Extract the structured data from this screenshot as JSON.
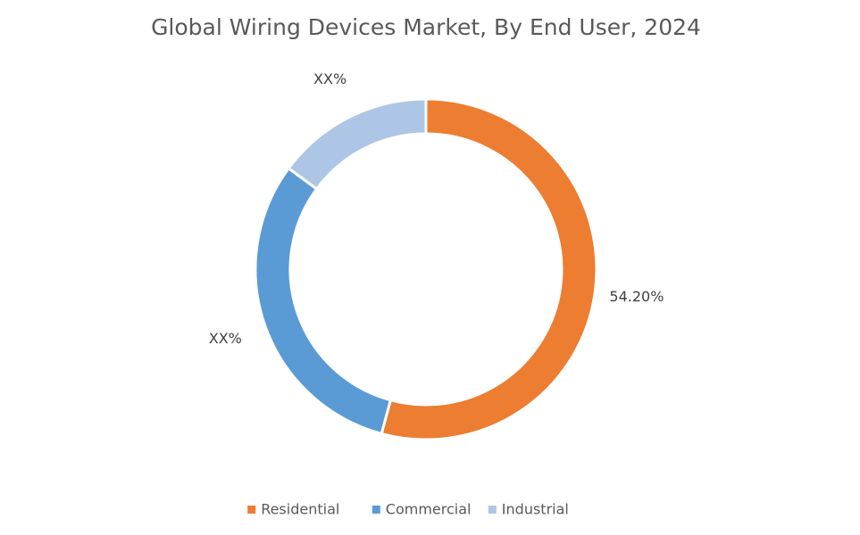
{
  "chart_data": {
    "type": "donut",
    "title": "Global Wiring Devices Market, By End User, 2024",
    "categories": [
      "Residential",
      "Commercial",
      "Industrial"
    ],
    "values": [
      54.2,
      30.9,
      14.9
    ],
    "value_labels": [
      "54.20%",
      "XX%",
      "XX%"
    ],
    "colors": [
      "#ed7d31",
      "#5b9bd5",
      "#adc6e5"
    ],
    "legend": "bottom"
  }
}
